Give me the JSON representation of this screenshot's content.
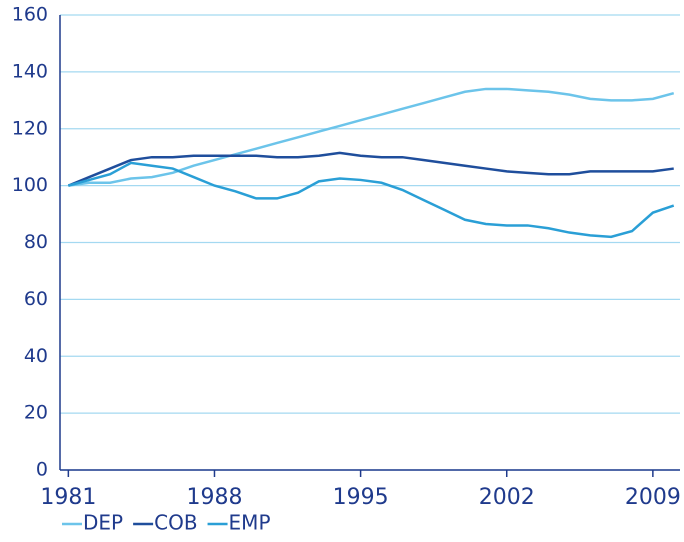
{
  "chart_data": {
    "type": "line",
    "x": [
      1981,
      1982,
      1983,
      1984,
      1985,
      1986,
      1987,
      1988,
      1989,
      1990,
      1991,
      1992,
      1993,
      1994,
      1995,
      1996,
      1997,
      1998,
      1999,
      2000,
      2001,
      2002,
      2003,
      2004,
      2005,
      2006,
      2007,
      2008,
      2009,
      2010
    ],
    "series": [
      {
        "name": "DEP",
        "color": "#6cc4ea",
        "values": [
          100,
          101,
          101,
          102.5,
          103,
          104.5,
          107,
          109,
          111,
          113,
          115,
          117,
          119,
          121,
          123,
          125,
          127,
          129,
          131,
          133,
          134,
          134,
          133.5,
          133,
          132,
          130.5,
          130,
          130,
          130.5,
          132.5
        ]
      },
      {
        "name": "COB",
        "color": "#1f4e9c",
        "values": [
          100,
          103,
          106,
          109,
          110,
          110,
          110.5,
          110.5,
          110.5,
          110.5,
          110,
          110,
          110.5,
          111.5,
          110.5,
          110,
          110,
          109,
          108,
          107,
          106,
          105,
          104.5,
          104,
          104,
          105,
          105,
          105,
          105,
          106
        ]
      },
      {
        "name": "EMP",
        "color": "#2a9fd6",
        "values": [
          100,
          102,
          104,
          108,
          107,
          106,
          103,
          100,
          98,
          95.5,
          95.5,
          97.5,
          101.5,
          102.5,
          102,
          101,
          98.5,
          95,
          91.5,
          88,
          86.5,
          86,
          86,
          85,
          83.5,
          82.5,
          82,
          84,
          90.5,
          93
        ]
      }
    ],
    "xlim": [
      1980.6,
      2010.3
    ],
    "xticks": [
      1981,
      1988,
      1995,
      2002,
      2009
    ],
    "ylim": [
      0,
      160
    ],
    "yticks": [
      0,
      20,
      40,
      60,
      80,
      100,
      120,
      140,
      160
    ],
    "grid": true,
    "legend": "bottom-left"
  }
}
